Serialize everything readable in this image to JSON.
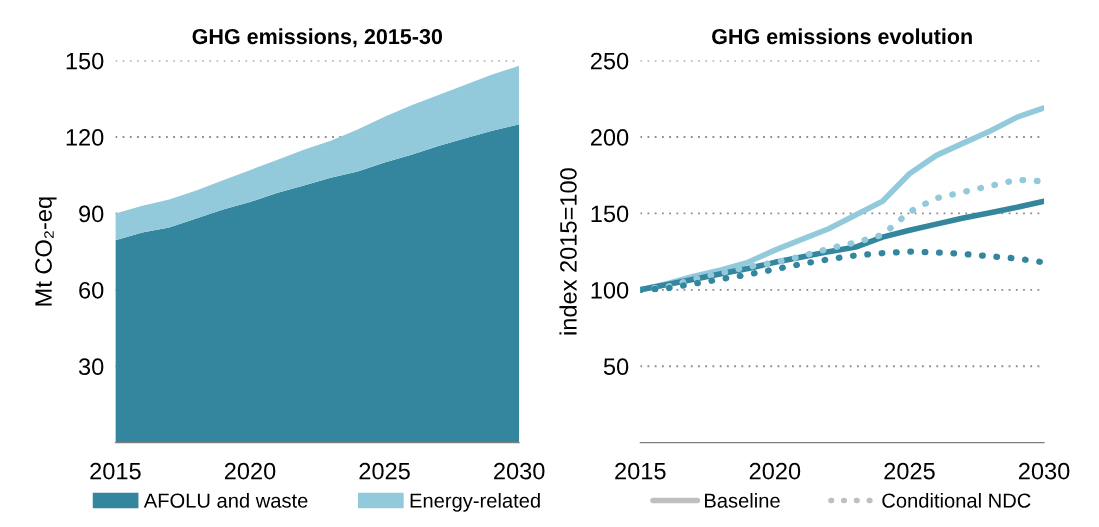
{
  "chart_data": [
    {
      "type": "area",
      "title": "GHG emissions, 2015-30",
      "ylabel": "Mt CO₂-eq",
      "stacked": true,
      "x": [
        2015,
        2016,
        2017,
        2018,
        2019,
        2020,
        2021,
        2022,
        2023,
        2024,
        2025,
        2026,
        2027,
        2028,
        2029,
        2030
      ],
      "xlim": [
        2015,
        2030
      ],
      "xticks": [
        2015,
        2020,
        2025,
        2030
      ],
      "ylim": [
        0,
        150
      ],
      "yticks": [
        30,
        60,
        90,
        120,
        150
      ],
      "grid": "y",
      "legend": "bottom",
      "series": [
        {
          "name": "AFOLU and waste",
          "color": "#33869e",
          "values": [
            79.5,
            82.5,
            84.5,
            88,
            91.5,
            94.5,
            98,
            101,
            104,
            106.5,
            110,
            113,
            116.5,
            119.5,
            122.5,
            125
          ]
        },
        {
          "name": "Energy-related",
          "color": "#93cadb",
          "values": [
            10.5,
            10.5,
            11,
            11,
            11.5,
            12.5,
            13,
            14,
            14.5,
            16.5,
            18,
            19.5,
            20,
            21,
            22,
            23
          ]
        }
      ]
    },
    {
      "type": "line",
      "title": "GHG emissions evolution",
      "ylabel": "index 2015=100",
      "x": [
        2015,
        2016,
        2017,
        2018,
        2019,
        2020,
        2021,
        2022,
        2023,
        2024,
        2025,
        2026,
        2027,
        2028,
        2029,
        2030
      ],
      "xlim": [
        2015,
        2030
      ],
      "xticks": [
        2015,
        2020,
        2025,
        2030
      ],
      "ylim": [
        0,
        250
      ],
      "yticks": [
        50,
        100,
        150,
        200,
        250
      ],
      "grid": "y",
      "legend": "bottom",
      "annotations": [
        "Baseline",
        "Conditional NDC"
      ],
      "series": [
        {
          "color": "#93cadb",
          "line_style": "solid",
          "values": [
            100,
            104,
            109,
            113,
            118,
            126,
            133,
            140,
            149,
            158,
            176,
            188,
            196,
            204,
            213,
            219
          ]
        },
        {
          "color": "#33869e",
          "line_style": "solid",
          "values": [
            100,
            103.5,
            107,
            110.5,
            114,
            118,
            121.5,
            125,
            128,
            134.5,
            139,
            143,
            147,
            150.5,
            154,
            158
          ]
        },
        {
          "color": "#93cadb",
          "line_style": "dotted",
          "values": [
            100,
            102,
            107,
            111,
            115,
            118,
            122,
            127,
            131,
            136,
            151,
            160,
            164,
            168,
            172,
            171
          ]
        },
        {
          "color": "#33869e",
          "line_style": "dotted",
          "values": [
            100,
            101,
            104,
            107,
            110,
            113.5,
            117,
            120,
            122.5,
            124,
            125,
            124.5,
            123.5,
            122,
            120.5,
            118
          ]
        }
      ]
    }
  ]
}
